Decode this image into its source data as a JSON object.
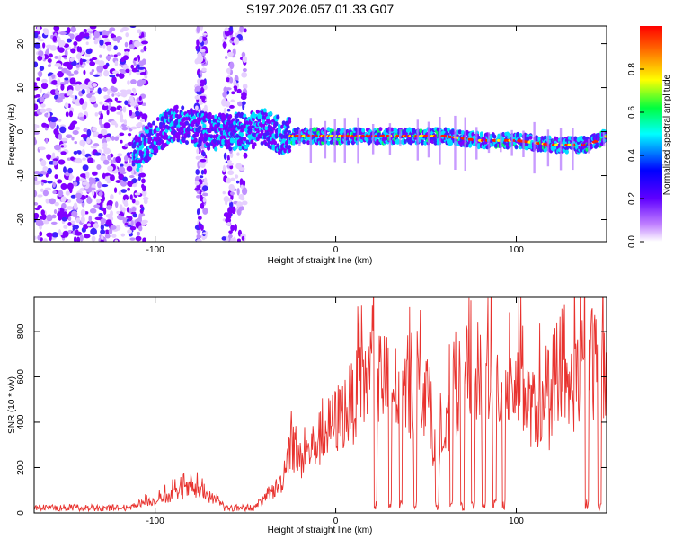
{
  "title": "S197.2026.057.01.33.G07",
  "colors": {
    "snr": "#e8322e",
    "frame": "#000000"
  },
  "chart_data": [
    {
      "type": "heatmap",
      "name": "spectrogram",
      "xlabel": "Height of straight line (km)",
      "ylabel": "Frequency (Hz)",
      "xlim": [
        -167,
        150
      ],
      "ylim": [
        -25,
        24
      ],
      "x_ticks": [
        -100,
        0,
        100
      ],
      "y_ticks": [
        -20,
        -10,
        0,
        10,
        20
      ],
      "colorbar": {
        "label": "Normalized spectral amplitude",
        "range": [
          0,
          1
        ],
        "ticks": [
          0.0,
          0.2,
          0.4,
          0.6,
          0.8
        ],
        "colormap": [
          "#ffffff",
          "#8000ff",
          "#0000ff",
          "#00ffff",
          "#00ff00",
          "#ffff00",
          "#ff0000"
        ]
      },
      "ridge": {
        "description": "dominant frequency vs height",
        "x": [
          -110,
          -100,
          -90,
          -80,
          -70,
          -50,
          -40,
          -30,
          -20,
          0,
          20,
          40,
          60,
          80,
          100,
          120,
          140,
          150
        ],
        "y": [
          -5,
          -1,
          2,
          1,
          0,
          0,
          1,
          -1,
          -1,
          -1,
          -1,
          -1,
          -1,
          -2,
          -2,
          -3,
          -3,
          -1
        ]
      }
    },
    {
      "type": "line",
      "name": "snr",
      "xlabel": "Height of straight line (km)",
      "ylabel": "SNR (10 * v/v)",
      "xlim": [
        -167,
        150
      ],
      "ylim": [
        0,
        950
      ],
      "x_ticks": [
        -100,
        0,
        100
      ],
      "y_ticks": [
        0,
        200,
        400,
        600,
        800
      ],
      "envelope": {
        "x": [
          -167,
          -140,
          -120,
          -100,
          -90,
          -80,
          -70,
          -60,
          -50,
          -40,
          -30,
          -25,
          -20,
          -10,
          0,
          10,
          20,
          30,
          40,
          50,
          55,
          60,
          70,
          80,
          90,
          100,
          110,
          120,
          130,
          140,
          150
        ],
        "y": [
          20,
          20,
          30,
          60,
          90,
          120,
          80,
          30,
          20,
          60,
          150,
          350,
          250,
          350,
          450,
          550,
          700,
          620,
          580,
          620,
          300,
          350,
          650,
          700,
          620,
          600,
          500,
          480,
          600,
          750,
          700
        ]
      },
      "dropouts": [
        22,
        30,
        36,
        44,
        56,
        64,
        70,
        76,
        82,
        88,
        93,
        139,
        146
      ]
    }
  ]
}
